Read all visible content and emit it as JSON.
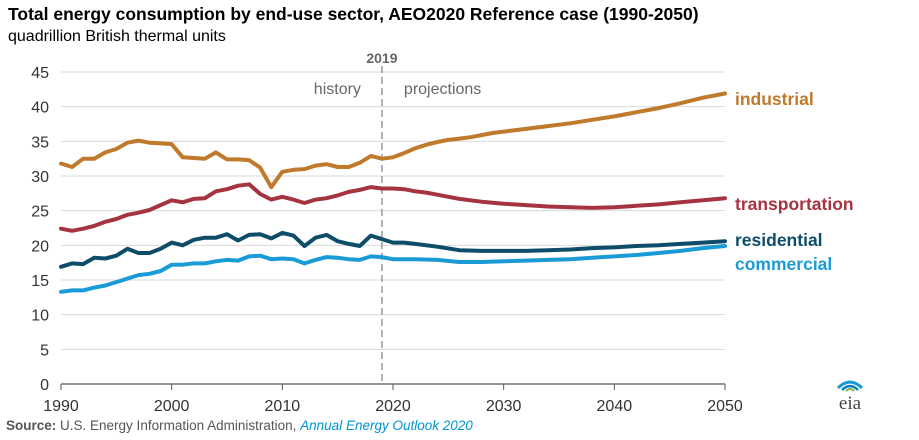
{
  "title": "Total energy consumption by end-use sector, AEO2020 Reference case (1990-2050)",
  "subtitle": "quadrillion British thermal units",
  "source": {
    "label": "Source:",
    "text": "U.S. Energy Information Administration,",
    "publication": "Annual Energy Outlook 2020"
  },
  "logo_text": "eia",
  "chart_data": {
    "type": "line",
    "title": "Total energy consumption by end-use sector, AEO2020 Reference case (1990-2050)",
    "ylabel": "quadrillion British thermal units",
    "xlim": [
      1990,
      2050
    ],
    "ylim": [
      0,
      45
    ],
    "yticks": [
      0,
      5,
      10,
      15,
      20,
      25,
      30,
      35,
      40,
      45
    ],
    "xticks": [
      1990,
      2000,
      2010,
      2020,
      2030,
      2040,
      2050
    ],
    "divider": {
      "year": 2019,
      "label": "2019"
    },
    "annotations": {
      "history": "history",
      "projections": "projections"
    },
    "grid": "horizontal",
    "series": [
      {
        "name": "industrial",
        "color": "#c07a2c",
        "points": [
          [
            1990,
            31.8
          ],
          [
            1991,
            31.3
          ],
          [
            1992,
            32.5
          ],
          [
            1993,
            32.5
          ],
          [
            1994,
            33.4
          ],
          [
            1995,
            33.9
          ],
          [
            1996,
            34.8
          ],
          [
            1997,
            35.1
          ],
          [
            1998,
            34.8
          ],
          [
            1999,
            34.7
          ],
          [
            2000,
            34.6
          ],
          [
            2001,
            32.7
          ],
          [
            2002,
            32.6
          ],
          [
            2003,
            32.5
          ],
          [
            2004,
            33.4
          ],
          [
            2005,
            32.4
          ],
          [
            2006,
            32.4
          ],
          [
            2007,
            32.3
          ],
          [
            2008,
            31.2
          ],
          [
            2009,
            28.4
          ],
          [
            2010,
            30.6
          ],
          [
            2011,
            30.9
          ],
          [
            2012,
            31.0
          ],
          [
            2013,
            31.5
          ],
          [
            2014,
            31.7
          ],
          [
            2015,
            31.3
          ],
          [
            2016,
            31.3
          ],
          [
            2017,
            31.9
          ],
          [
            2018,
            32.9
          ],
          [
            2019,
            32.5
          ],
          [
            2020,
            32.7
          ],
          [
            2021,
            33.3
          ],
          [
            2022,
            34.0
          ],
          [
            2023,
            34.5
          ],
          [
            2024,
            34.9
          ],
          [
            2025,
            35.2
          ],
          [
            2026,
            35.4
          ],
          [
            2027,
            35.6
          ],
          [
            2028,
            35.9
          ],
          [
            2029,
            36.2
          ],
          [
            2030,
            36.4
          ],
          [
            2032,
            36.8
          ],
          [
            2034,
            37.2
          ],
          [
            2036,
            37.6
          ],
          [
            2038,
            38.1
          ],
          [
            2040,
            38.6
          ],
          [
            2042,
            39.2
          ],
          [
            2044,
            39.8
          ],
          [
            2046,
            40.5
          ],
          [
            2048,
            41.3
          ],
          [
            2050,
            41.9
          ]
        ]
      },
      {
        "name": "transportation",
        "color": "#a63440",
        "points": [
          [
            1990,
            22.4
          ],
          [
            1991,
            22.1
          ],
          [
            1992,
            22.4
          ],
          [
            1993,
            22.8
          ],
          [
            1994,
            23.4
          ],
          [
            1995,
            23.8
          ],
          [
            1996,
            24.4
          ],
          [
            1997,
            24.7
          ],
          [
            1998,
            25.1
          ],
          [
            1999,
            25.8
          ],
          [
            2000,
            26.5
          ],
          [
            2001,
            26.2
          ],
          [
            2002,
            26.7
          ],
          [
            2003,
            26.8
          ],
          [
            2004,
            27.8
          ],
          [
            2005,
            28.1
          ],
          [
            2006,
            28.6
          ],
          [
            2007,
            28.8
          ],
          [
            2008,
            27.4
          ],
          [
            2009,
            26.6
          ],
          [
            2010,
            27.0
          ],
          [
            2011,
            26.6
          ],
          [
            2012,
            26.1
          ],
          [
            2013,
            26.6
          ],
          [
            2014,
            26.8
          ],
          [
            2015,
            27.2
          ],
          [
            2016,
            27.7
          ],
          [
            2017,
            28.0
          ],
          [
            2018,
            28.4
          ],
          [
            2019,
            28.2
          ],
          [
            2020,
            28.2
          ],
          [
            2021,
            28.1
          ],
          [
            2022,
            27.8
          ],
          [
            2023,
            27.6
          ],
          [
            2024,
            27.3
          ],
          [
            2025,
            27.0
          ],
          [
            2026,
            26.7
          ],
          [
            2028,
            26.3
          ],
          [
            2030,
            26.0
          ],
          [
            2032,
            25.8
          ],
          [
            2034,
            25.6
          ],
          [
            2036,
            25.5
          ],
          [
            2038,
            25.4
          ],
          [
            2040,
            25.5
          ],
          [
            2042,
            25.7
          ],
          [
            2044,
            25.9
          ],
          [
            2046,
            26.2
          ],
          [
            2048,
            26.5
          ],
          [
            2050,
            26.8
          ]
        ]
      },
      {
        "name": "residential",
        "color": "#0e4d6a",
        "points": [
          [
            1990,
            16.9
          ],
          [
            1991,
            17.4
          ],
          [
            1992,
            17.3
          ],
          [
            1993,
            18.2
          ],
          [
            1994,
            18.1
          ],
          [
            1995,
            18.5
          ],
          [
            1996,
            19.5
          ],
          [
            1997,
            18.9
          ],
          [
            1998,
            18.9
          ],
          [
            1999,
            19.5
          ],
          [
            2000,
            20.4
          ],
          [
            2001,
            20.0
          ],
          [
            2002,
            20.8
          ],
          [
            2003,
            21.1
          ],
          [
            2004,
            21.1
          ],
          [
            2005,
            21.6
          ],
          [
            2006,
            20.7
          ],
          [
            2007,
            21.5
          ],
          [
            2008,
            21.6
          ],
          [
            2009,
            21.0
          ],
          [
            2010,
            21.8
          ],
          [
            2011,
            21.4
          ],
          [
            2012,
            19.9
          ],
          [
            2013,
            21.1
          ],
          [
            2014,
            21.5
          ],
          [
            2015,
            20.6
          ],
          [
            2016,
            20.2
          ],
          [
            2017,
            19.9
          ],
          [
            2018,
            21.4
          ],
          [
            2019,
            20.9
          ],
          [
            2020,
            20.4
          ],
          [
            2021,
            20.4
          ],
          [
            2022,
            20.2
          ],
          [
            2024,
            19.8
          ],
          [
            2026,
            19.3
          ],
          [
            2028,
            19.2
          ],
          [
            2030,
            19.2
          ],
          [
            2032,
            19.2
          ],
          [
            2034,
            19.3
          ],
          [
            2036,
            19.4
          ],
          [
            2038,
            19.6
          ],
          [
            2040,
            19.7
          ],
          [
            2042,
            19.9
          ],
          [
            2044,
            20.0
          ],
          [
            2046,
            20.2
          ],
          [
            2048,
            20.4
          ],
          [
            2050,
            20.6
          ]
        ]
      },
      {
        "name": "commercial",
        "color": "#1a9ad6",
        "points": [
          [
            1990,
            13.3
          ],
          [
            1991,
            13.5
          ],
          [
            1992,
            13.5
          ],
          [
            1993,
            13.9
          ],
          [
            1994,
            14.2
          ],
          [
            1995,
            14.7
          ],
          [
            1996,
            15.2
          ],
          [
            1997,
            15.7
          ],
          [
            1998,
            15.9
          ],
          [
            1999,
            16.3
          ],
          [
            2000,
            17.2
          ],
          [
            2001,
            17.2
          ],
          [
            2002,
            17.4
          ],
          [
            2003,
            17.4
          ],
          [
            2004,
            17.7
          ],
          [
            2005,
            17.9
          ],
          [
            2006,
            17.8
          ],
          [
            2007,
            18.4
          ],
          [
            2008,
            18.5
          ],
          [
            2009,
            18.0
          ],
          [
            2010,
            18.1
          ],
          [
            2011,
            18.0
          ],
          [
            2012,
            17.4
          ],
          [
            2013,
            17.9
          ],
          [
            2014,
            18.3
          ],
          [
            2015,
            18.2
          ],
          [
            2016,
            18.0
          ],
          [
            2017,
            17.9
          ],
          [
            2018,
            18.4
          ],
          [
            2019,
            18.3
          ],
          [
            2020,
            18.0
          ],
          [
            2022,
            18.0
          ],
          [
            2024,
            17.9
          ],
          [
            2026,
            17.6
          ],
          [
            2028,
            17.6
          ],
          [
            2030,
            17.7
          ],
          [
            2032,
            17.8
          ],
          [
            2034,
            17.9
          ],
          [
            2036,
            18.0
          ],
          [
            2038,
            18.2
          ],
          [
            2040,
            18.4
          ],
          [
            2042,
            18.6
          ],
          [
            2044,
            18.9
          ],
          [
            2046,
            19.2
          ],
          [
            2048,
            19.6
          ],
          [
            2050,
            19.9
          ]
        ]
      }
    ]
  }
}
